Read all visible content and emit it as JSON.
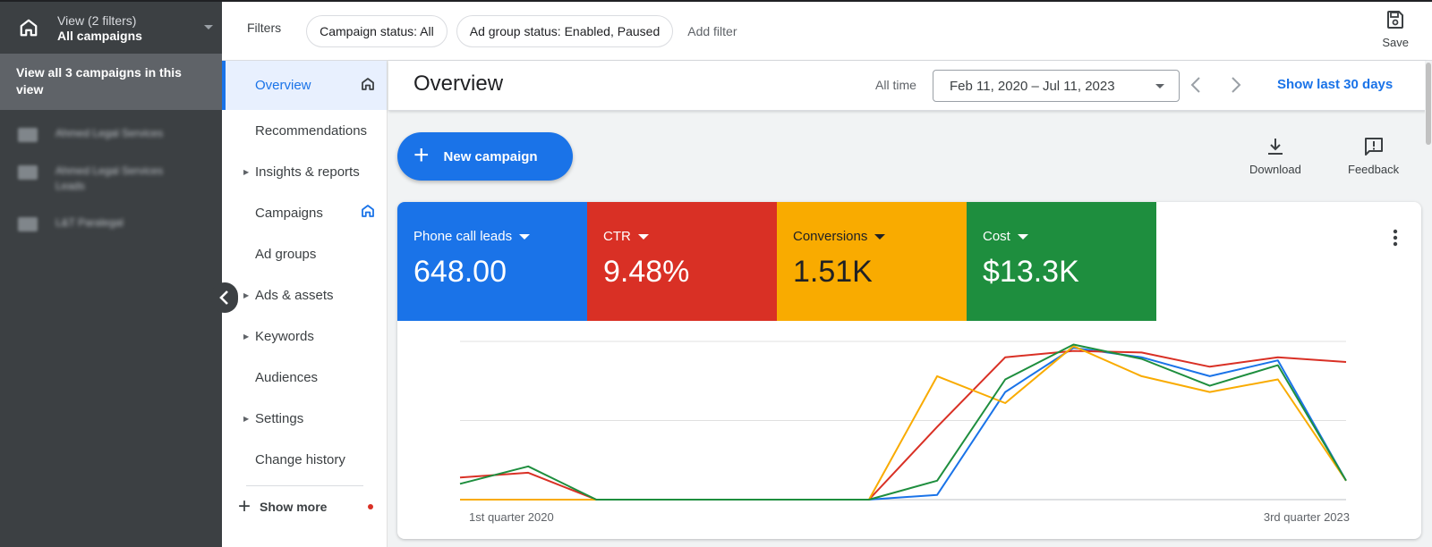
{
  "left_panel": {
    "view_label": "View (2 filters)",
    "view_value": "All campaigns",
    "view_all": "View all 3 campaigns in this view",
    "campaigns": [
      "Ahmed Legal Services",
      "Ahmed Legal Services Leads",
      "L&T Paralegal"
    ]
  },
  "topbar": {
    "filters_label": "Filters",
    "chips": [
      "Campaign status: All",
      "Ad group status: Enabled, Paused"
    ],
    "add_filter": "Add filter",
    "save": "Save"
  },
  "nav": {
    "items": [
      {
        "label": "Overview",
        "active": true,
        "arrow": false,
        "icon": "home-icon"
      },
      {
        "label": "Recommendations",
        "arrow": false
      },
      {
        "label": "Insights & reports",
        "arrow": true
      },
      {
        "label": "Campaigns",
        "arrow": false,
        "icon": "home-icon"
      },
      {
        "label": "Ad groups",
        "arrow": false
      },
      {
        "label": "Ads & assets",
        "arrow": true
      },
      {
        "label": "Keywords",
        "arrow": true
      },
      {
        "label": "Audiences",
        "arrow": false
      },
      {
        "label": "Settings",
        "arrow": true
      },
      {
        "label": "Change history",
        "arrow": false
      }
    ],
    "show_more": "Show more"
  },
  "header": {
    "title": "Overview",
    "all_time": "All time",
    "date_range": "Feb 11, 2020 – Jul 11, 2023",
    "show_last": "Show last 30 days"
  },
  "actions": {
    "new_campaign": "New campaign",
    "download": "Download",
    "feedback": "Feedback"
  },
  "metrics": [
    {
      "label": "Phone call leads",
      "value": "648.00",
      "color": "#1a73e8"
    },
    {
      "label": "CTR",
      "value": "9.48%",
      "color": "#d93025"
    },
    {
      "label": "Conversions",
      "value": "1.51K",
      "color": "#f9ab00"
    },
    {
      "label": "Cost",
      "value": "$13.3K",
      "color": "#1e8e3e"
    }
  ],
  "chart_data": {
    "type": "line",
    "x_labels": [
      "1st quarter 2020",
      "3rd quarter 2023"
    ],
    "ylim": [
      0,
      100
    ],
    "grid": true,
    "series": [
      {
        "color": "#1a73e8",
        "values": [
          0,
          0,
          0,
          0,
          0,
          0,
          0,
          3,
          68,
          96,
          90,
          78,
          88,
          12
        ]
      },
      {
        "color": "#d93025",
        "values": [
          14,
          17,
          0,
          0,
          0,
          0,
          0,
          46,
          90,
          94,
          93,
          84,
          90,
          87
        ]
      },
      {
        "color": "#f9ab00",
        "values": [
          0,
          0,
          0,
          0,
          0,
          0,
          0,
          78,
          61,
          97,
          78,
          68,
          76,
          12
        ]
      },
      {
        "color": "#1e8e3e",
        "values": [
          10,
          21,
          0,
          0,
          0,
          0,
          0,
          12,
          76,
          98,
          89,
          72,
          85,
          12
        ]
      }
    ]
  }
}
